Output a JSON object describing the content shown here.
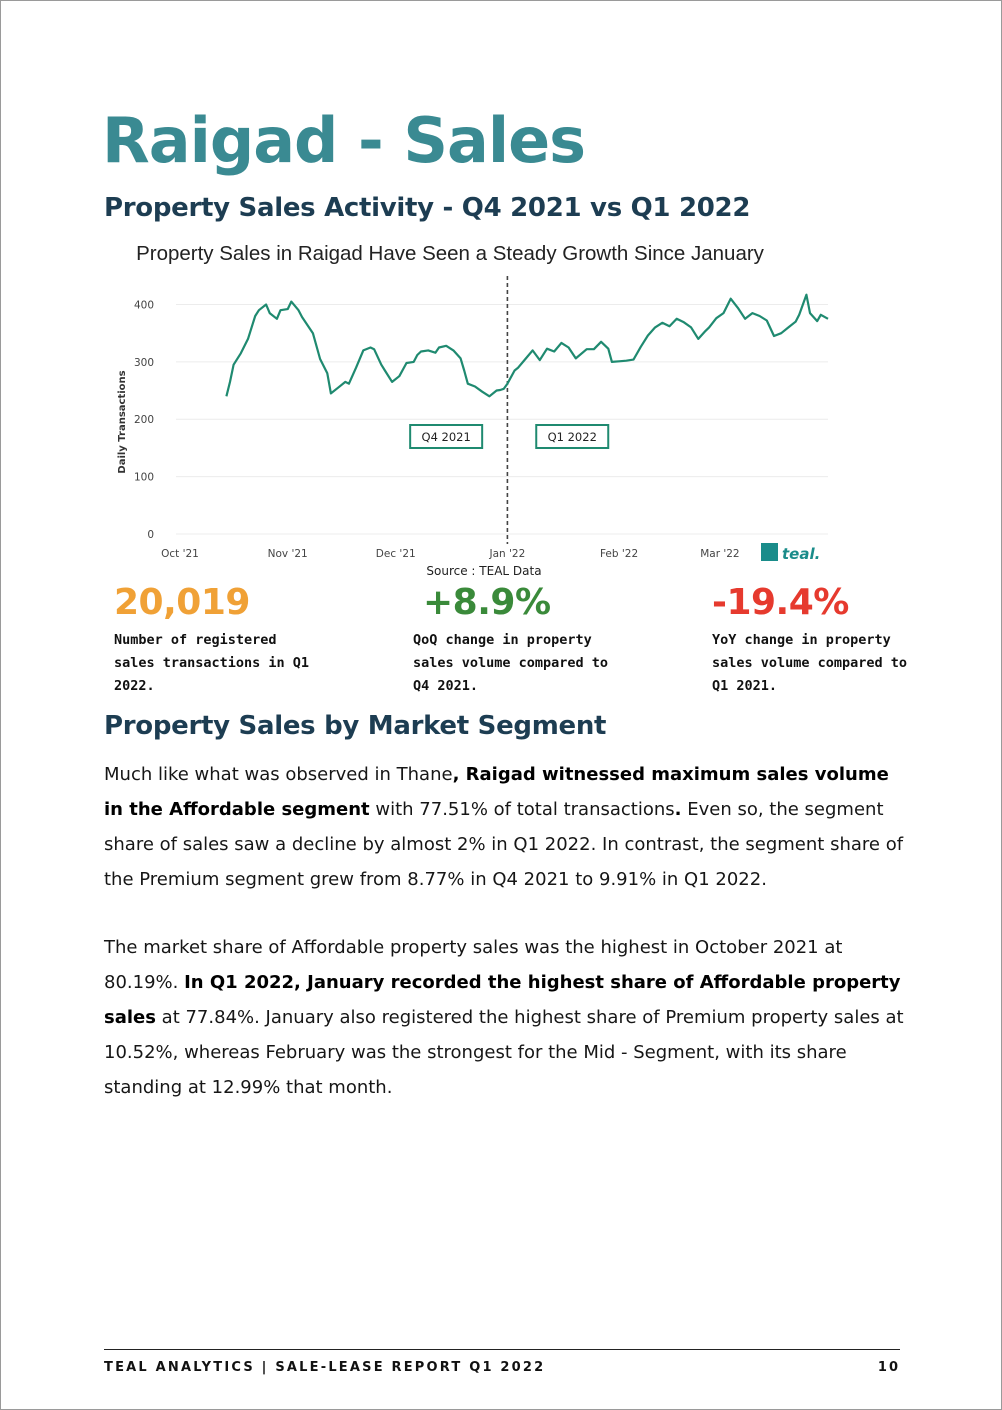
{
  "page": {
    "title": "Raigad - Sales",
    "section1_heading": "Property Sales Activity - Q4 2021 vs Q1 2022",
    "section2_heading": "Property Sales by Market Segment"
  },
  "chart_data": {
    "type": "line",
    "title": "Property Sales in Raigad Have Seen a Steady Growth Since January",
    "ylabel": "Daily Transactions",
    "xlabel": "",
    "source": "Source : TEAL Data",
    "ylim": [
      0,
      420
    ],
    "yticks": [
      0,
      100,
      200,
      300,
      400
    ],
    "xticks": [
      "Oct '21",
      "Nov '21",
      "Dec '21",
      "Jan '22",
      "Feb '22",
      "Mar '22"
    ],
    "xlim": [
      "2021-10-01",
      "2022-03-31"
    ],
    "grid": true,
    "divider": "2022-01-01",
    "quarter_labels": [
      "Q4 2021",
      "Q1 2022"
    ],
    "logo_text": "teal.",
    "line_color": "#1f8a70",
    "x": [
      "2021-10-15",
      "2021-10-16",
      "2021-10-17",
      "2021-10-19",
      "2021-10-21",
      "2021-10-23",
      "2021-10-24",
      "2021-10-26",
      "2021-10-27",
      "2021-10-29",
      "2021-10-30",
      "2021-11-01",
      "2021-11-02",
      "2021-11-04",
      "2021-11-05",
      "2021-11-08",
      "2021-11-10",
      "2021-11-12",
      "2021-11-13",
      "2021-11-15",
      "2021-11-17",
      "2021-11-18",
      "2021-11-20",
      "2021-11-22",
      "2021-11-24",
      "2021-11-25",
      "2021-11-27",
      "2021-11-28",
      "2021-11-30",
      "2021-12-02",
      "2021-12-04",
      "2021-12-06",
      "2021-12-07",
      "2021-12-08",
      "2021-12-10",
      "2021-12-12",
      "2021-12-13",
      "2021-12-15",
      "2021-12-17",
      "2021-12-19",
      "2021-12-20",
      "2021-12-21",
      "2021-12-23",
      "2021-12-25",
      "2021-12-27",
      "2021-12-29",
      "2021-12-30",
      "2021-12-31",
      "2022-01-01",
      "2022-01-03",
      "2022-01-04",
      "2022-01-06",
      "2022-01-08",
      "2022-01-10",
      "2022-01-12",
      "2022-01-14",
      "2022-01-16",
      "2022-01-18",
      "2022-01-20",
      "2022-01-23",
      "2022-01-25",
      "2022-01-27",
      "2022-01-29",
      "2022-01-30",
      "2022-02-01",
      "2022-02-03",
      "2022-02-05",
      "2022-02-07",
      "2022-02-09",
      "2022-02-11",
      "2022-02-13",
      "2022-02-15",
      "2022-02-17",
      "2022-02-19",
      "2022-02-21",
      "2022-02-23",
      "2022-02-25",
      "2022-02-26",
      "2022-02-28",
      "2022-03-02",
      "2022-03-04",
      "2022-03-06",
      "2022-03-08",
      "2022-03-10",
      "2022-03-12",
      "2022-03-14",
      "2022-03-16",
      "2022-03-18",
      "2022-03-20",
      "2022-03-22",
      "2022-03-23",
      "2022-03-25",
      "2022-03-26",
      "2022-03-28",
      "2022-03-29",
      "2022-03-31"
    ],
    "values": [
      240,
      265,
      295,
      315,
      340,
      380,
      390,
      400,
      385,
      375,
      390,
      392,
      405,
      390,
      378,
      350,
      305,
      280,
      245,
      255,
      265,
      262,
      290,
      320,
      325,
      322,
      295,
      285,
      265,
      275,
      298,
      300,
      312,
      318,
      320,
      316,
      325,
      328,
      320,
      306,
      285,
      262,
      257,
      248,
      240,
      250,
      251,
      253,
      262,
      285,
      290,
      305,
      320,
      303,
      323,
      318,
      333,
      325,
      306,
      322,
      322,
      335,
      323,
      300,
      301,
      302,
      304,
      326,
      346,
      360,
      368,
      362,
      375,
      369,
      360,
      340,
      354,
      360,
      376,
      385,
      410,
      394,
      375,
      385,
      380,
      372,
      345,
      350,
      360,
      370,
      382,
      417,
      385,
      371,
      382,
      375
    ]
  },
  "stats": [
    {
      "value": "20,019",
      "desc": "Number of registered sales transactions in  Q1 2022.",
      "color": "#f0a136"
    },
    {
      "value": "+8.9%",
      "desc": "QoQ change in property sales volume compared to Q4 2021.",
      "color": "#3a8a3a"
    },
    {
      "value": "-19.4%",
      "desc": "YoY change in property sales volume compared to Q1 2021.",
      "color": "#e63a2e"
    }
  ],
  "paragraph1": {
    "t1": "Much like what was observed in Thane",
    "b1": ", Raigad witnessed maximum sales volume in the Affordable segment",
    "t2": " with 77.51% of total transactions",
    "b2": ".",
    "t3": " Even so, the segment share of sales saw a decline by almost 2% in Q1 2022. In contrast, the segment share of the Premium segment grew from 8.77% in Q4 2021 to 9.91% in Q1 2022."
  },
  "paragraph2": {
    "t1": "The market share of Affordable property sales was the highest in October 2021 at 80.19%. ",
    "b1": "In Q1 2022, January recorded the highest share of Affordable property sales",
    "t2": " at 77.84%. January also registered the highest share of Premium property sales at 10.52%, whereas February was the strongest for the Mid - Segment, with its share standing at 12.99% that month."
  },
  "footer": {
    "left": "TEAL ANALYTICS | SALE-LEASE REPORT Q1 2022",
    "page_number": "10"
  }
}
